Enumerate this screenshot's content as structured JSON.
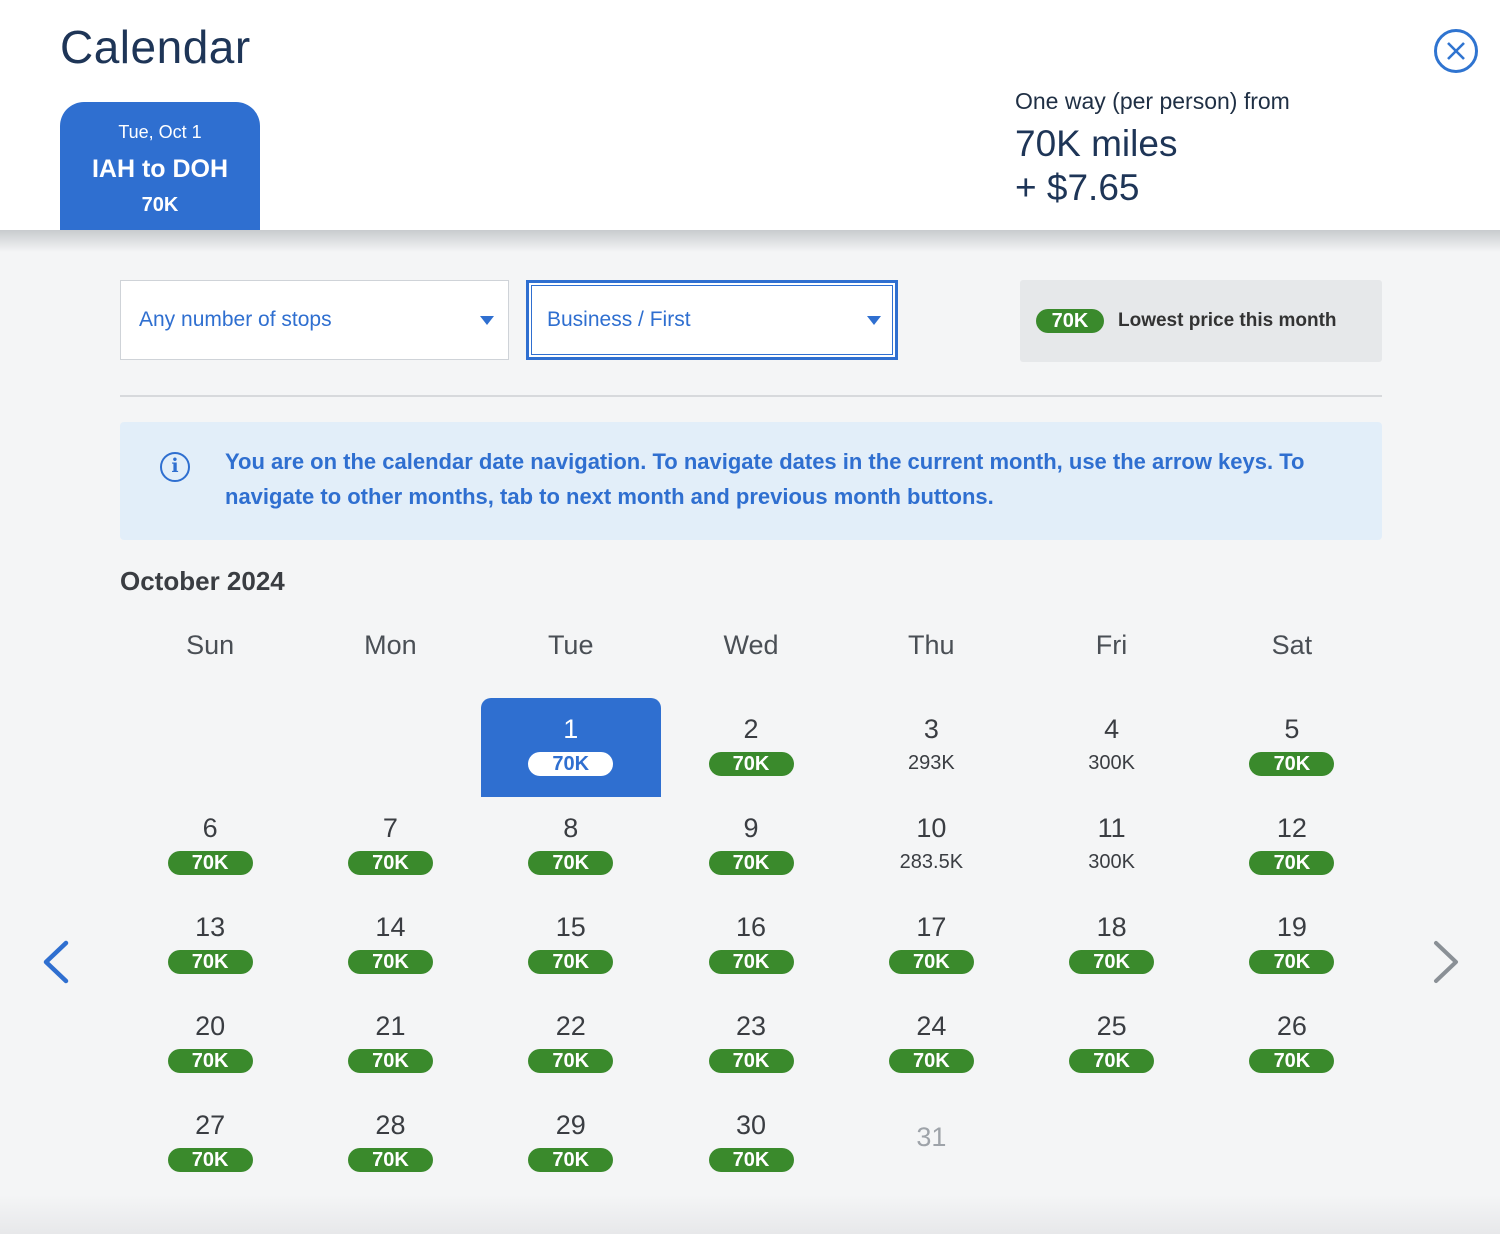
{
  "header": {
    "title": "Calendar",
    "close_icon": "close-circle-icon",
    "trip_tab": {
      "date": "Tue, Oct 1",
      "route": "IAH to DOH",
      "price": "70K"
    },
    "fare": {
      "label": "One way (per person) from",
      "miles": "70K miles",
      "tax": "+ $7.65"
    }
  },
  "filters": {
    "stops": {
      "value": "Any number of stops",
      "icon": "caret-down-icon"
    },
    "cabin": {
      "value": "Business / First",
      "icon": "caret-down-icon"
    },
    "legend": {
      "badge": "70K",
      "text": "Lowest price this month"
    }
  },
  "info": {
    "icon": "info-icon",
    "glyph": "i",
    "text": "You are on the calendar date navigation. To navigate dates in the current month, use the arrow keys. To navigate to other months, tab to next month and previous month buttons."
  },
  "calendar": {
    "month": "October 2024",
    "weekdays": [
      "Sun",
      "Mon",
      "Tue",
      "Wed",
      "Thu",
      "Fri",
      "Sat"
    ],
    "days": [
      {
        "day": "1",
        "price": "70K",
        "lowest": true,
        "selected": true
      },
      {
        "day": "2",
        "price": "70K",
        "lowest": true
      },
      {
        "day": "3",
        "price": "293K",
        "lowest": false
      },
      {
        "day": "4",
        "price": "300K",
        "lowest": false
      },
      {
        "day": "5",
        "price": "70K",
        "lowest": true
      },
      {
        "day": "6",
        "price": "70K",
        "lowest": true
      },
      {
        "day": "7",
        "price": "70K",
        "lowest": true
      },
      {
        "day": "8",
        "price": "70K",
        "lowest": true
      },
      {
        "day": "9",
        "price": "70K",
        "lowest": true
      },
      {
        "day": "10",
        "price": "283.5K",
        "lowest": false
      },
      {
        "day": "11",
        "price": "300K",
        "lowest": false
      },
      {
        "day": "12",
        "price": "70K",
        "lowest": true
      },
      {
        "day": "13",
        "price": "70K",
        "lowest": true
      },
      {
        "day": "14",
        "price": "70K",
        "lowest": true
      },
      {
        "day": "15",
        "price": "70K",
        "lowest": true
      },
      {
        "day": "16",
        "price": "70K",
        "lowest": true
      },
      {
        "day": "17",
        "price": "70K",
        "lowest": true
      },
      {
        "day": "18",
        "price": "70K",
        "lowest": true
      },
      {
        "day": "19",
        "price": "70K",
        "lowest": true
      },
      {
        "day": "20",
        "price": "70K",
        "lowest": true
      },
      {
        "day": "21",
        "price": "70K",
        "lowest": true
      },
      {
        "day": "22",
        "price": "70K",
        "lowest": true
      },
      {
        "day": "23",
        "price": "70K",
        "lowest": true
      },
      {
        "day": "24",
        "price": "70K",
        "lowest": true
      },
      {
        "day": "25",
        "price": "70K",
        "lowest": true
      },
      {
        "day": "26",
        "price": "70K",
        "lowest": true
      },
      {
        "day": "27",
        "price": "70K",
        "lowest": true
      },
      {
        "day": "28",
        "price": "70K",
        "lowest": true
      },
      {
        "day": "29",
        "price": "70K",
        "lowest": true
      },
      {
        "day": "30",
        "price": "70K",
        "lowest": true
      },
      {
        "day": "31",
        "price": "",
        "lowest": false,
        "unavailable": true
      }
    ],
    "prev_icon": "chevron-left-icon",
    "next_icon": "chevron-right-icon"
  },
  "colors": {
    "brand_blue": "#2f6fd0",
    "lowest_green": "#3a8a2c",
    "info_bg": "#e2eef9"
  }
}
